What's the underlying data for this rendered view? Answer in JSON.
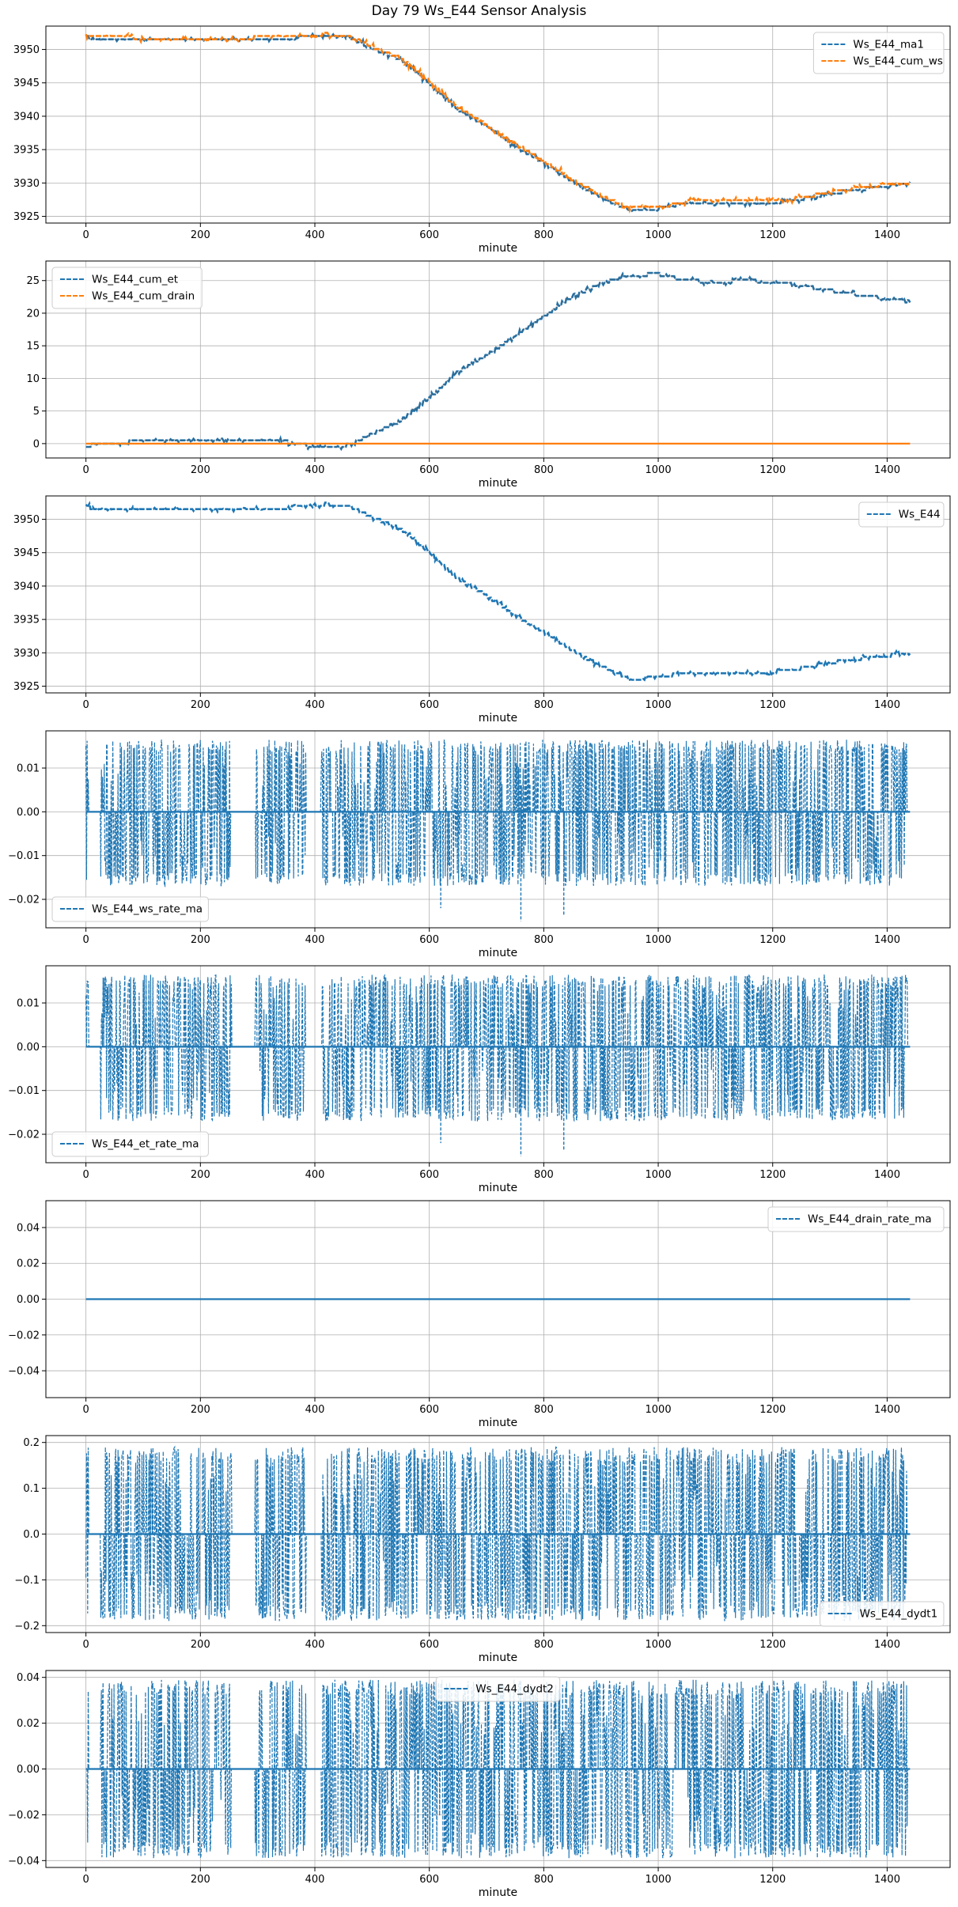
{
  "figure": {
    "title": "Day 79 Ws_E44 Sensor Analysis"
  },
  "chart_data": [
    {
      "type": "line",
      "xlabel": "minute",
      "ylabel": "",
      "xlim": [
        -70,
        1510
      ],
      "ylim": [
        3924.0,
        3953.5
      ],
      "xticks": [
        0,
        200,
        400,
        600,
        800,
        1000,
        1200,
        1400
      ],
      "yticks": [
        3925,
        3930,
        3935,
        3940,
        3945,
        3950
      ],
      "ytick_labels": [
        "3925",
        "3930",
        "3935",
        "3940",
        "3945",
        "3950"
      ],
      "grid": true,
      "legend_position": "upper right",
      "series": [
        {
          "name": "Ws_E44_ma1",
          "color": "#1f77b4",
          "style": "dashed",
          "pattern": "trend",
          "x": [
            0,
            50,
            100,
            150,
            200,
            250,
            300,
            350,
            400,
            420,
            460,
            500,
            550,
            600,
            650,
            700,
            750,
            800,
            850,
            900,
            950,
            1000,
            1050,
            1100,
            1150,
            1200,
            1250,
            1300,
            1350,
            1400,
            1440
          ],
          "y": [
            3951.8,
            3951.5,
            3951.4,
            3951.3,
            3951.3,
            3951.3,
            3951.4,
            3951.6,
            3952.0,
            3952.1,
            3951.8,
            3950.2,
            3948.5,
            3945.0,
            3941.0,
            3938.5,
            3935.5,
            3933.0,
            3930.3,
            3927.8,
            3926.0,
            3926.2,
            3927.0,
            3927.0,
            3927.0,
            3927.0,
            3927.6,
            3928.4,
            3929.0,
            3929.6,
            3929.9
          ]
        },
        {
          "name": "Ws_E44_cum_ws",
          "color": "#ff7f0e",
          "style": "dashed",
          "pattern": "trend",
          "x": [
            0,
            50,
            100,
            150,
            200,
            250,
            300,
            350,
            400,
            420,
            460,
            500,
            550,
            600,
            650,
            700,
            750,
            800,
            850,
            900,
            950,
            1000,
            1050,
            1100,
            1150,
            1200,
            1250,
            1300,
            1350,
            1400,
            1440
          ],
          "y": [
            3952.0,
            3951.9,
            3951.7,
            3951.7,
            3951.7,
            3951.6,
            3951.8,
            3951.9,
            3952.2,
            3952.3,
            3952.0,
            3950.4,
            3948.7,
            3945.3,
            3941.3,
            3938.7,
            3935.8,
            3933.3,
            3930.5,
            3928.1,
            3926.2,
            3926.4,
            3927.2,
            3927.3,
            3927.2,
            3927.2,
            3927.8,
            3928.6,
            3929.3,
            3929.8,
            3930.0
          ]
        }
      ]
    },
    {
      "type": "line",
      "xlabel": "minute",
      "ylabel": "",
      "xlim": [
        -70,
        1510
      ],
      "ylim": [
        -2.2,
        28.0
      ],
      "xticks": [
        0,
        200,
        400,
        600,
        800,
        1000,
        1200,
        1400
      ],
      "yticks": [
        0,
        5,
        10,
        15,
        20,
        25
      ],
      "ytick_labels": [
        "0",
        "5",
        "10",
        "15",
        "20",
        "25"
      ],
      "grid": true,
      "legend_position": "upper left",
      "series": [
        {
          "name": "Ws_E44_cum_et",
          "color": "#1f77b4",
          "style": "dashed",
          "pattern": "trend",
          "x": [
            0,
            50,
            100,
            150,
            200,
            250,
            300,
            350,
            400,
            420,
            460,
            500,
            550,
            600,
            650,
            700,
            750,
            800,
            850,
            900,
            950,
            1000,
            1050,
            1100,
            1150,
            1200,
            1250,
            1300,
            1350,
            1400,
            1440
          ],
          "y": [
            -0.3,
            0.0,
            0.5,
            0.5,
            0.5,
            0.6,
            0.6,
            0.3,
            -0.5,
            -0.7,
            -0.2,
            1.5,
            3.5,
            7.0,
            11.0,
            13.5,
            16.5,
            19.5,
            22.5,
            24.5,
            25.8,
            26.0,
            25.0,
            24.8,
            25.0,
            24.8,
            24.2,
            23.5,
            22.8,
            22.2,
            21.8
          ]
        },
        {
          "name": "Ws_E44_cum_drain",
          "color": "#ff7f0e",
          "style": "dashed",
          "pattern": "trend",
          "x": [
            0,
            1440
          ],
          "y": [
            0,
            0
          ]
        }
      ]
    },
    {
      "type": "line",
      "xlabel": "minute",
      "ylabel": "",
      "xlim": [
        -70,
        1510
      ],
      "ylim": [
        3924.0,
        3953.5
      ],
      "xticks": [
        0,
        200,
        400,
        600,
        800,
        1000,
        1200,
        1400
      ],
      "yticks": [
        3925,
        3930,
        3935,
        3940,
        3945,
        3950
      ],
      "ytick_labels": [
        "3925",
        "3930",
        "3935",
        "3940",
        "3945",
        "3950"
      ],
      "grid": true,
      "legend_position": "upper right",
      "series": [
        {
          "name": "Ws_E44",
          "color": "#1f77b4",
          "style": "dashed",
          "pattern": "trend",
          "x": [
            0,
            50,
            100,
            150,
            200,
            250,
            300,
            350,
            400,
            420,
            460,
            500,
            550,
            600,
            650,
            700,
            750,
            800,
            850,
            900,
            950,
            1000,
            1050,
            1100,
            1150,
            1200,
            1250,
            1300,
            1350,
            1400,
            1440
          ],
          "y": [
            3951.8,
            3951.6,
            3951.5,
            3951.5,
            3951.5,
            3951.5,
            3951.5,
            3951.7,
            3952.1,
            3952.3,
            3952.0,
            3950.3,
            3948.6,
            3945.1,
            3941.1,
            3938.6,
            3935.6,
            3933.1,
            3930.4,
            3928.0,
            3926.1,
            3926.3,
            3927.1,
            3927.1,
            3927.1,
            3927.1,
            3927.7,
            3928.5,
            3929.1,
            3929.6,
            3929.9
          ]
        }
      ]
    },
    {
      "type": "line",
      "xlabel": "minute",
      "ylabel": "",
      "xlim": [
        -70,
        1510
      ],
      "ylim": [
        -0.0265,
        0.0185
      ],
      "xticks": [
        0,
        200,
        400,
        600,
        800,
        1000,
        1200,
        1400
      ],
      "yticks": [
        -0.02,
        -0.01,
        0.0,
        0.01
      ],
      "ytick_labels": [
        "−0.02",
        "−0.01",
        "0.00",
        "0.01"
      ],
      "grid": true,
      "legend_position": "lower left",
      "series": [
        {
          "name": "Ws_E44_ws_rate_ma",
          "color": "#1f77b4",
          "style": "dashed",
          "pattern": "spikes",
          "amplitude_up": 0.0165,
          "amplitude_down": -0.017,
          "outliers": [
            [
              620,
              -0.022
            ],
            [
              760,
              -0.025
            ],
            [
              835,
              -0.0235
            ]
          ],
          "active_ranges": [
            [
              0,
              5
            ],
            [
              25,
              255
            ],
            [
              295,
              385
            ],
            [
              410,
              1435
            ]
          ],
          "quiet_ranges": [
            [
              5,
              25
            ],
            [
              255,
              295
            ],
            [
              385,
              410
            ]
          ]
        }
      ]
    },
    {
      "type": "line",
      "xlabel": "minute",
      "ylabel": "",
      "xlim": [
        -70,
        1510
      ],
      "ylim": [
        -0.0265,
        0.0185
      ],
      "xticks": [
        0,
        200,
        400,
        600,
        800,
        1000,
        1200,
        1400
      ],
      "yticks": [
        -0.02,
        -0.01,
        0.0,
        0.01
      ],
      "ytick_labels": [
        "−0.02",
        "−0.01",
        "0.00",
        "0.01"
      ],
      "grid": true,
      "legend_position": "lower left",
      "series": [
        {
          "name": "Ws_E44_et_rate_ma",
          "color": "#1f77b4",
          "style": "dashed",
          "pattern": "spikes",
          "amplitude_up": 0.0165,
          "amplitude_down": -0.017,
          "outliers": [
            [
              620,
              -0.022
            ],
            [
              760,
              -0.025
            ],
            [
              835,
              -0.0235
            ]
          ],
          "active_ranges": [
            [
              0,
              5
            ],
            [
              25,
              255
            ],
            [
              295,
              385
            ],
            [
              410,
              1435
            ]
          ],
          "quiet_ranges": [
            [
              5,
              25
            ],
            [
              255,
              295
            ],
            [
              385,
              410
            ]
          ]
        }
      ]
    },
    {
      "type": "line",
      "xlabel": "minute",
      "ylabel": "",
      "xlim": [
        -70,
        1510
      ],
      "ylim": [
        -0.055,
        0.055
      ],
      "xticks": [
        0,
        200,
        400,
        600,
        800,
        1000,
        1200,
        1400
      ],
      "yticks": [
        -0.04,
        -0.02,
        0.0,
        0.02,
        0.04
      ],
      "ytick_labels": [
        "−0.04",
        "−0.02",
        "0.00",
        "0.02",
        "0.04"
      ],
      "grid": true,
      "legend_position": "upper right",
      "series": [
        {
          "name": "Ws_E44_drain_rate_ma",
          "color": "#1f77b4",
          "style": "dashed",
          "pattern": "trend",
          "x": [
            0,
            1440
          ],
          "y": [
            0.0,
            0.0
          ]
        }
      ]
    },
    {
      "type": "line",
      "xlabel": "minute",
      "ylabel": "",
      "xlim": [
        -70,
        1510
      ],
      "ylim": [
        -0.215,
        0.215
      ],
      "xticks": [
        0,
        200,
        400,
        600,
        800,
        1000,
        1200,
        1400
      ],
      "yticks": [
        -0.2,
        -0.1,
        0.0,
        0.1,
        0.2
      ],
      "ytick_labels": [
        "−0.2",
        "−0.1",
        "0.0",
        "0.1",
        "0.2"
      ],
      "grid": true,
      "legend_position": "lower right",
      "series": [
        {
          "name": "Ws_E44_dydt1",
          "color": "#1f77b4",
          "style": "dashed",
          "pattern": "spikes",
          "amplitude_up": 0.19,
          "amplitude_down": -0.19,
          "outliers": [],
          "active_ranges": [
            [
              0,
              5
            ],
            [
              25,
              255
            ],
            [
              295,
              385
            ],
            [
              410,
              1435
            ]
          ],
          "quiet_ranges": [
            [
              5,
              25
            ],
            [
              255,
              295
            ],
            [
              385,
              410
            ]
          ]
        }
      ]
    },
    {
      "type": "line",
      "xlabel": "minute",
      "ylabel": "",
      "xlim": [
        -70,
        1510
      ],
      "ylim": [
        -0.043,
        0.043
      ],
      "xticks": [
        0,
        200,
        400,
        600,
        800,
        1000,
        1200,
        1400
      ],
      "yticks": [
        -0.04,
        -0.02,
        0.0,
        0.02,
        0.04
      ],
      "ytick_labels": [
        "−0.04",
        "−0.02",
        "0.00",
        "0.02",
        "0.04"
      ],
      "grid": true,
      "legend_position": "upper center",
      "series": [
        {
          "name": "Ws_E44_dydt2",
          "color": "#1f77b4",
          "style": "dashed",
          "pattern": "spikes",
          "amplitude_up": 0.039,
          "amplitude_down": -0.039,
          "outliers": [],
          "active_ranges": [
            [
              0,
              5
            ],
            [
              25,
              255
            ],
            [
              295,
              385
            ],
            [
              410,
              1435
            ]
          ],
          "quiet_ranges": [
            [
              5,
              25
            ],
            [
              255,
              295
            ],
            [
              385,
              410
            ]
          ]
        }
      ]
    }
  ]
}
